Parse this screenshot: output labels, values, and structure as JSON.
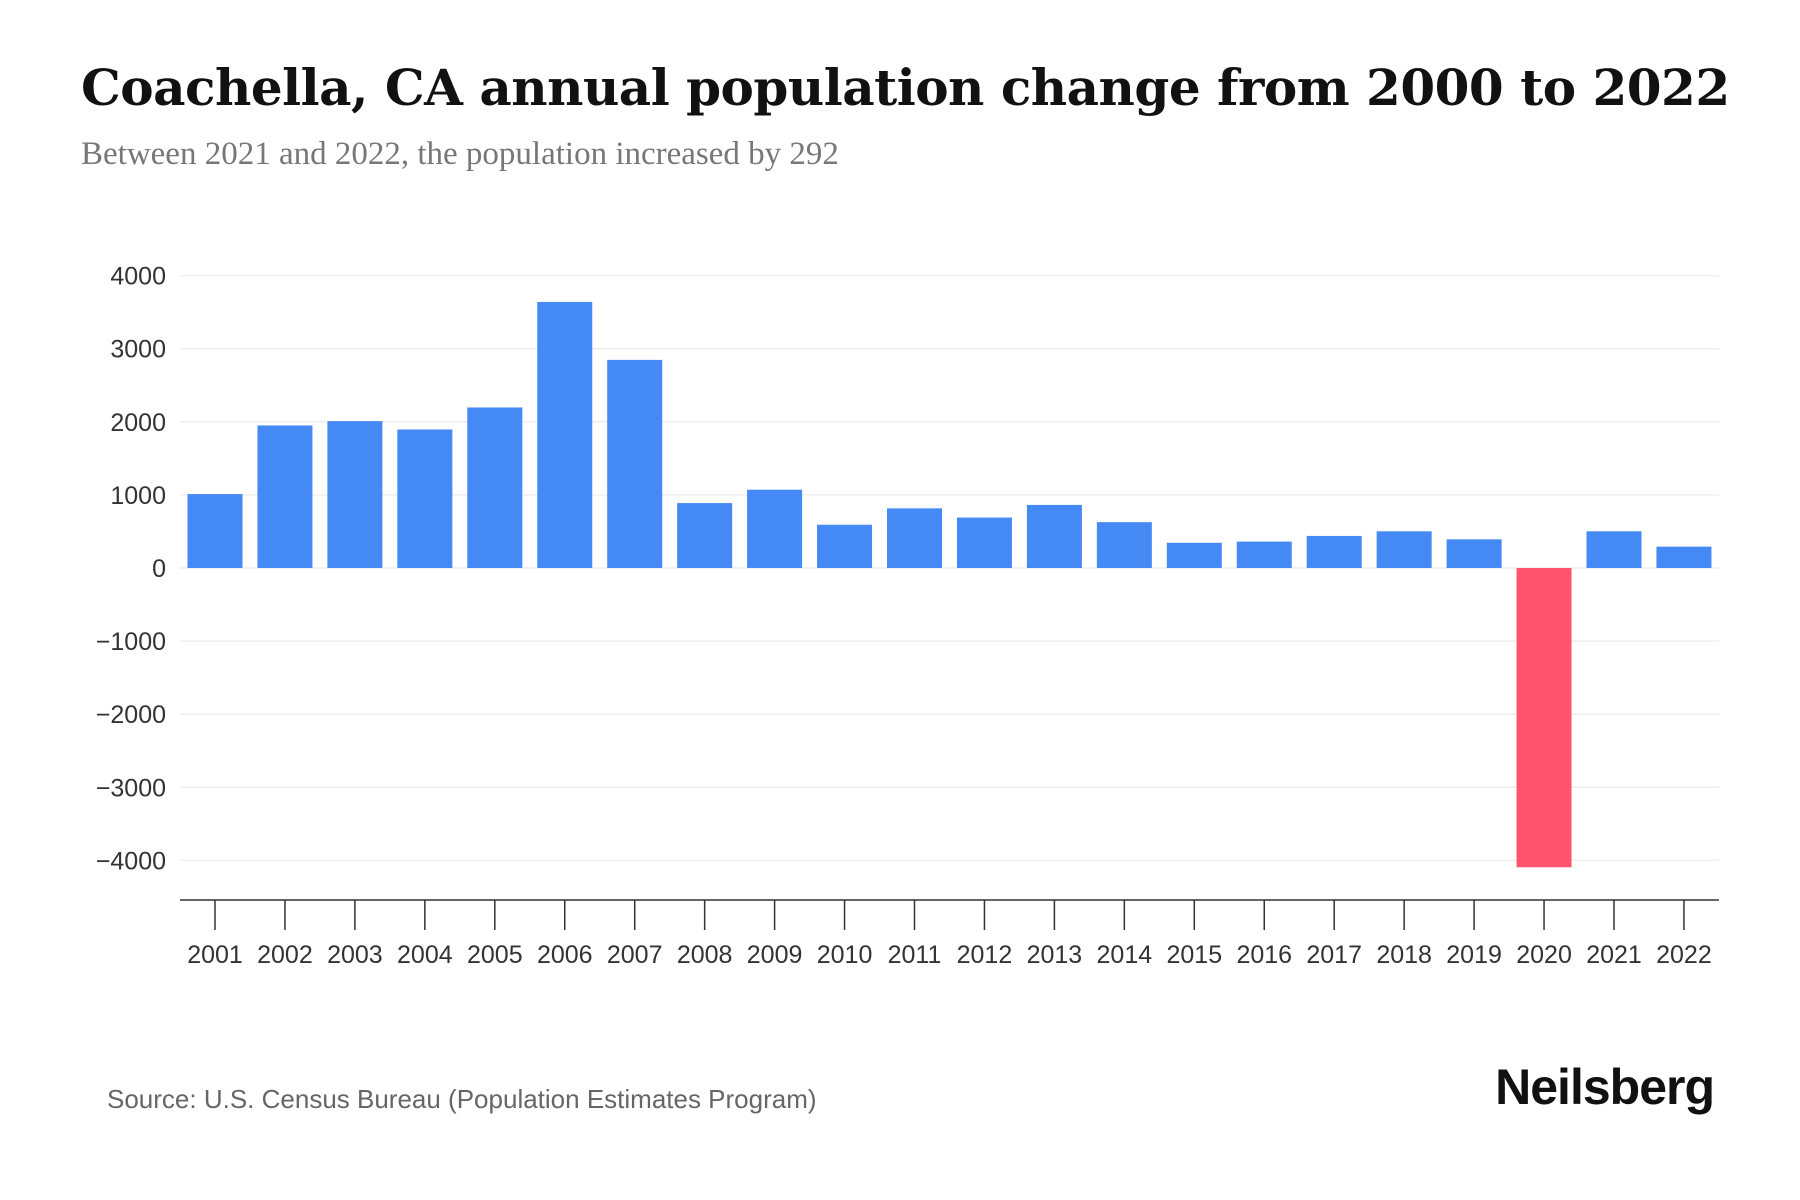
{
  "title": "Coachella, CA annual population change from 2000 to 2022",
  "subtitle": "Between 2021 and 2022, the population increased by 292",
  "source": "Source: U.S. Census Bureau (Population Estimates Program)",
  "logo": "Neilsberg",
  "colors": {
    "positive": "#4589f5",
    "negative": "#fe5470"
  },
  "chart_data": {
    "type": "bar",
    "title": "Coachella, CA annual population change from 2000 to 2022",
    "xlabel": "",
    "ylabel": "",
    "categories": [
      "2001",
      "2002",
      "2003",
      "2004",
      "2005",
      "2006",
      "2007",
      "2008",
      "2009",
      "2010",
      "2011",
      "2012",
      "2013",
      "2014",
      "2015",
      "2016",
      "2017",
      "2018",
      "2019",
      "2020",
      "2021",
      "2022"
    ],
    "values": [
      1011,
      1950,
      2009,
      1895,
      2196,
      3640,
      2847,
      888,
      1071,
      592,
      816,
      690,
      863,
      627,
      345,
      361,
      439,
      502,
      392,
      -4094,
      502,
      292
    ],
    "ylim": [
      -4500,
      4000
    ],
    "yticks": [
      4000,
      3000,
      2000,
      1000,
      0,
      -1000,
      -2000,
      -3000,
      -4000
    ],
    "ytick_labels": [
      "4000",
      "3000",
      "2000",
      "1000",
      "0",
      "−1000",
      "−2000",
      "−3000",
      "−4000"
    ],
    "grid": true
  }
}
